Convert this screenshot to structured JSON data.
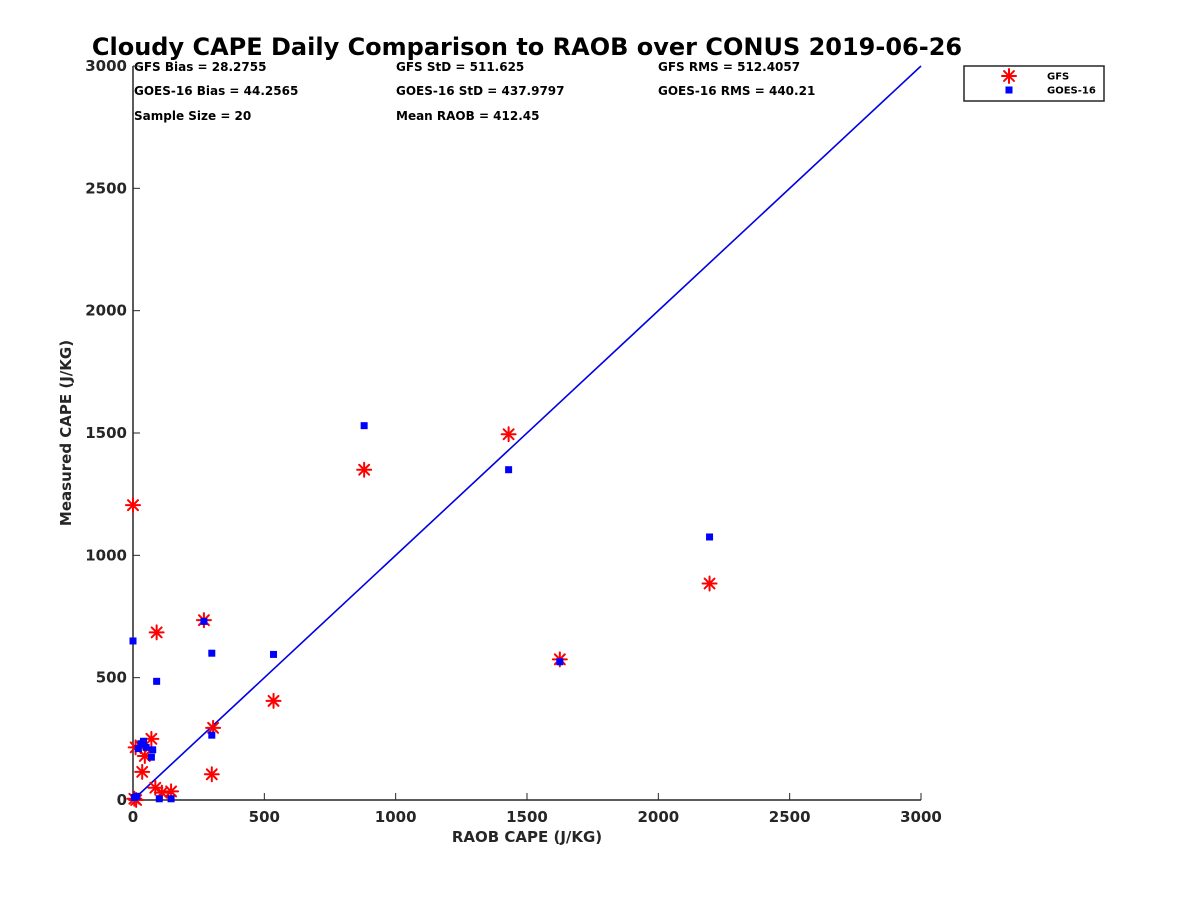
{
  "chart_data": {
    "type": "scatter",
    "title": "Cloudy CAPE Daily Comparison to RAOB over CONUS 2019-06-26",
    "xlabel": "RAOB CAPE (J/KG)",
    "ylabel": "Measured CAPE (J/KG)",
    "xlim": [
      0,
      3000
    ],
    "ylim": [
      0,
      3000
    ],
    "xticks": [
      0,
      500,
      1000,
      1500,
      2000,
      2500,
      3000
    ],
    "yticks": [
      0,
      500,
      1000,
      1500,
      2000,
      2500,
      3000
    ],
    "grid": false,
    "legend_position": "top-right",
    "stats": [
      "GFS Bias = 28.2755",
      "GFS StD = 511.625",
      "GFS RMS = 512.4057",
      "GOES-16 Bias = 44.2565",
      "GOES-16 StD = 437.9797",
      "GOES-16 RMS = 440.21",
      "Sample Size = 20",
      "Mean RAOB = 412.45"
    ],
    "reference_line": {
      "x": [
        0,
        3000
      ],
      "y": [
        0,
        3000
      ],
      "color": "#0000e6"
    },
    "series": [
      {
        "name": "GFS",
        "marker": "asterisk",
        "color": "#ff0000",
        "points": [
          [
            0,
            1205
          ],
          [
            5,
            5
          ],
          [
            12,
            0
          ],
          [
            10,
            215
          ],
          [
            35,
            115
          ],
          [
            45,
            180
          ],
          [
            70,
            250
          ],
          [
            85,
            50
          ],
          [
            90,
            685
          ],
          [
            110,
            30
          ],
          [
            145,
            35
          ],
          [
            270,
            735
          ],
          [
            300,
            105
          ],
          [
            305,
            295
          ],
          [
            535,
            405
          ],
          [
            880,
            1350
          ],
          [
            1430,
            1495
          ],
          [
            1625,
            575
          ],
          [
            2195,
            885
          ],
          [
            30,
            220
          ]
        ]
      },
      {
        "name": "GOES-16",
        "marker": "square",
        "color": "#0000ff",
        "points": [
          [
            0,
            650
          ],
          [
            5,
            10
          ],
          [
            15,
            15
          ],
          [
            20,
            210
          ],
          [
            40,
            240
          ],
          [
            50,
            215
          ],
          [
            70,
            175
          ],
          [
            75,
            205
          ],
          [
            90,
            485
          ],
          [
            100,
            5
          ],
          [
            145,
            5
          ],
          [
            270,
            730
          ],
          [
            300,
            265
          ],
          [
            300,
            600
          ],
          [
            535,
            595
          ],
          [
            880,
            1530
          ],
          [
            1430,
            1350
          ],
          [
            1625,
            565
          ],
          [
            2195,
            1075
          ],
          [
            30,
            230
          ]
        ]
      }
    ]
  }
}
